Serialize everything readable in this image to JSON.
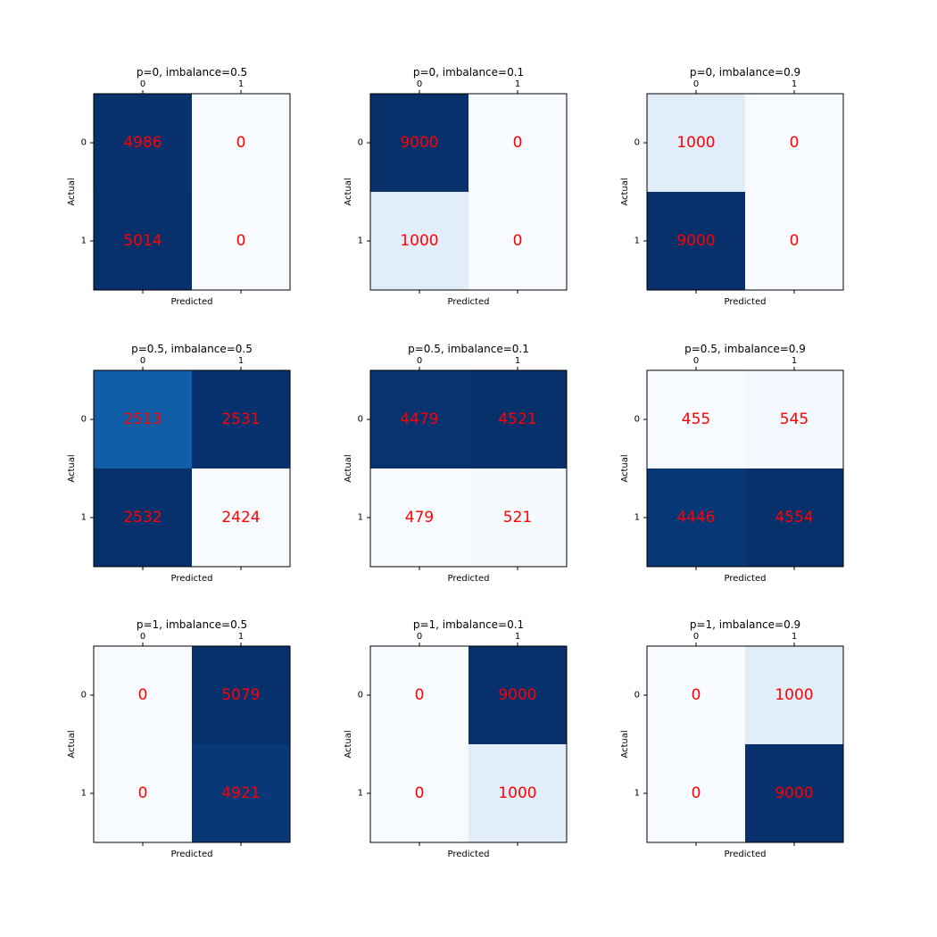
{
  "figure": {
    "layout": "3x3 grid",
    "colormap": "Blues",
    "text_color": "#ff0000"
  },
  "chart_data": [
    {
      "type": "heatmap",
      "title": "p=0, imbalance=0.5",
      "xlabel": "Predicted",
      "ylabel": "Actual",
      "x_ticks": [
        "0",
        "1"
      ],
      "y_ticks": [
        "0",
        "1"
      ],
      "values": [
        [
          4986,
          0
        ],
        [
          5014,
          0
        ]
      ]
    },
    {
      "type": "heatmap",
      "title": "p=0, imbalance=0.1",
      "xlabel": "Predicted",
      "ylabel": "Actual",
      "x_ticks": [
        "0",
        "1"
      ],
      "y_ticks": [
        "0",
        "1"
      ],
      "values": [
        [
          9000,
          0
        ],
        [
          1000,
          0
        ]
      ]
    },
    {
      "type": "heatmap",
      "title": "p=0, imbalance=0.9",
      "xlabel": "Predicted",
      "ylabel": "Actual",
      "x_ticks": [
        "0",
        "1"
      ],
      "y_ticks": [
        "0",
        "1"
      ],
      "values": [
        [
          1000,
          0
        ],
        [
          9000,
          0
        ]
      ]
    },
    {
      "type": "heatmap",
      "title": "p=0.5, imbalance=0.5",
      "xlabel": "Predicted",
      "ylabel": "Actual",
      "x_ticks": [
        "0",
        "1"
      ],
      "y_ticks": [
        "0",
        "1"
      ],
      "values": [
        [
          2513,
          2531
        ],
        [
          2532,
          2424
        ]
      ]
    },
    {
      "type": "heatmap",
      "title": "p=0.5, imbalance=0.1",
      "xlabel": "Predicted",
      "ylabel": "Actual",
      "x_ticks": [
        "0",
        "1"
      ],
      "y_ticks": [
        "0",
        "1"
      ],
      "values": [
        [
          4479,
          4521
        ],
        [
          479,
          521
        ]
      ]
    },
    {
      "type": "heatmap",
      "title": "p=0.5, imbalance=0.9",
      "xlabel": "Predicted",
      "ylabel": "Actual",
      "x_ticks": [
        "0",
        "1"
      ],
      "y_ticks": [
        "0",
        "1"
      ],
      "values": [
        [
          455,
          545
        ],
        [
          4446,
          4554
        ]
      ]
    },
    {
      "type": "heatmap",
      "title": "p=1, imbalance=0.5",
      "xlabel": "Predicted",
      "ylabel": "Actual",
      "x_ticks": [
        "0",
        "1"
      ],
      "y_ticks": [
        "0",
        "1"
      ],
      "values": [
        [
          0,
          5079
        ],
        [
          0,
          4921
        ]
      ]
    },
    {
      "type": "heatmap",
      "title": "p=1, imbalance=0.1",
      "xlabel": "Predicted",
      "ylabel": "Actual",
      "x_ticks": [
        "0",
        "1"
      ],
      "y_ticks": [
        "0",
        "1"
      ],
      "values": [
        [
          0,
          9000
        ],
        [
          0,
          1000
        ]
      ]
    },
    {
      "type": "heatmap",
      "title": "p=1, imbalance=0.9",
      "xlabel": "Predicted",
      "ylabel": "Actual",
      "x_ticks": [
        "0",
        "1"
      ],
      "y_ticks": [
        "0",
        "1"
      ],
      "values": [
        [
          0,
          1000
        ],
        [
          0,
          9000
        ]
      ]
    }
  ]
}
